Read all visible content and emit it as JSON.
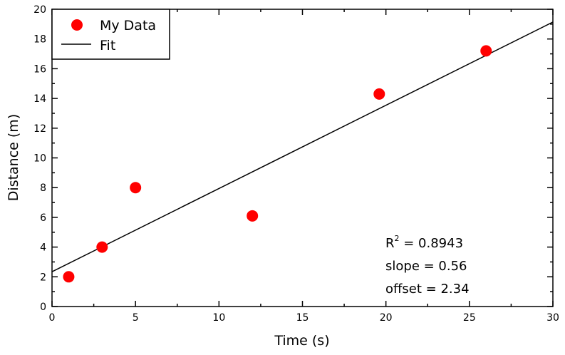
{
  "chart_data": {
    "type": "scatter",
    "xlabel": "Time (s)",
    "ylabel": "Distance (m)",
    "xlim": [
      0,
      30
    ],
    "ylim": [
      0,
      20
    ],
    "xticks": [
      0,
      5,
      10,
      15,
      20,
      25,
      30
    ],
    "yticks": [
      0,
      2,
      4,
      6,
      8,
      10,
      12,
      14,
      16,
      18,
      20
    ],
    "grid": false,
    "legend_position": "top-left",
    "series": [
      {
        "name": "My Data",
        "kind": "scatter",
        "color": "#ff0000",
        "x": [
          1,
          3,
          5,
          12,
          19.6,
          26
        ],
        "y": [
          2,
          4,
          8,
          6.1,
          14.3,
          17.2
        ]
      },
      {
        "name": "Fit",
        "kind": "line",
        "color": "#000000",
        "slope": 0.56,
        "offset": 2.34
      }
    ],
    "annotations": {
      "r2_label": "R",
      "r2_sup": "2",
      "r2_value": " = 0.8943",
      "slope": "slope = 0.56",
      "offset": "offset = 2.34"
    }
  }
}
